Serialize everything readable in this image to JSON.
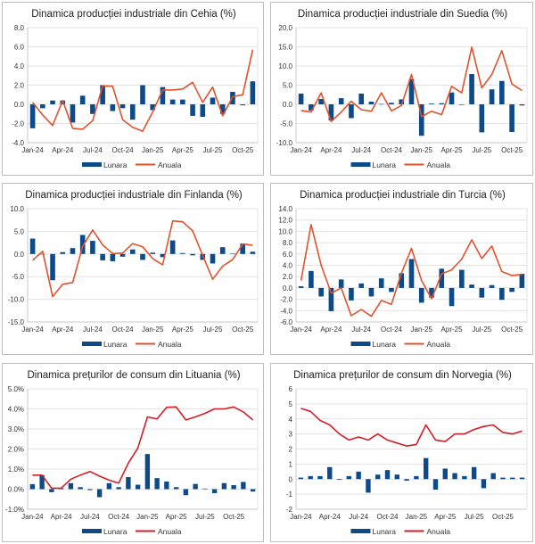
{
  "colors": {
    "bar": "#0d4a8a",
    "line_orange": "#e0522e",
    "line_red": "#d21f27",
    "grid": "#e3e3e3"
  },
  "chart_data": [
    {
      "id": "cehia",
      "type": "bar+line",
      "title": "Dinamica producției industriale din Cehia (%)",
      "xlabel": "",
      "ylabel": "",
      "ylim": [
        -4,
        8
      ],
      "yticks": [
        -4,
        -2,
        0,
        2,
        4,
        6,
        8
      ],
      "ytick_format": "fixed1",
      "grid": true,
      "legend": "bottom",
      "x": [
        "Jan-24",
        "Feb-24",
        "Mar-24",
        "Apr-24",
        "May-24",
        "Jun-24",
        "Jul-24",
        "Aug-24",
        "Sep-24",
        "Oct-24",
        "Nov-24",
        "Dec-24",
        "Jan-25",
        "Feb-25",
        "Mar-25",
        "Apr-25",
        "May-25",
        "Jun-25",
        "Jul-25",
        "Aug-25",
        "Sep-25",
        "Oct-25",
        "Nov-25"
      ],
      "xtick_labels": [
        "Jan-24",
        "Apr-24",
        "Jul-24",
        "Oct-24",
        "Jan-25",
        "Apr-25",
        "Jul-25",
        "Oct-25"
      ],
      "xtick_indices": [
        0,
        3,
        6,
        9,
        12,
        15,
        18,
        21
      ],
      "line_color_key": "line_orange",
      "series": [
        {
          "name": "Lunara",
          "kind": "bar",
          "values": [
            -2.5,
            -0.4,
            0.4,
            0.4,
            -1.9,
            0.9,
            -1.0,
            2.0,
            -0.7,
            -0.4,
            -1.6,
            2.0,
            -0.6,
            1.8,
            0.5,
            0.5,
            -1.2,
            -1.3,
            0.7,
            -1.0,
            1.3,
            -0.1,
            2.4
          ]
        },
        {
          "name": "Anuala",
          "kind": "line",
          "values": [
            0.2,
            -1.1,
            -2.2,
            0.4,
            -2.5,
            -2.6,
            -1.7,
            1.9,
            1.9,
            -1.6,
            -2.4,
            -2.8,
            -0.8,
            1.5,
            1.5,
            1.6,
            2.3,
            0.2,
            1.8,
            -1.2,
            0.8,
            1.0,
            5.7
          ]
        }
      ]
    },
    {
      "id": "suedia",
      "type": "bar+line",
      "title": "Dinamica producției industriale din Suedia (%)",
      "xlabel": "",
      "ylabel": "",
      "ylim": [
        -10,
        20
      ],
      "yticks": [
        -10,
        -5,
        0,
        5,
        10,
        15,
        20
      ],
      "ytick_format": "fixed1",
      "grid": true,
      "legend": "bottom",
      "x": [
        "Jan-24",
        "Feb-24",
        "Mar-24",
        "Apr-24",
        "May-24",
        "Jun-24",
        "Jul-24",
        "Aug-24",
        "Sep-24",
        "Oct-24",
        "Nov-24",
        "Dec-24",
        "Jan-25",
        "Feb-25",
        "Mar-25",
        "Apr-25",
        "May-25",
        "Jun-25",
        "Jul-25",
        "Aug-25",
        "Sep-25",
        "Oct-25",
        "Nov-25"
      ],
      "xtick_labels": [
        "Jan-24",
        "Apr-24",
        "Jul-24",
        "Oct-24",
        "Jan-25",
        "Apr-25",
        "Jul-25",
        "Oct-25"
      ],
      "xtick_indices": [
        0,
        3,
        6,
        9,
        12,
        15,
        18,
        21
      ],
      "line_color_key": "line_orange",
      "series": [
        {
          "name": "Lunara",
          "kind": "bar",
          "values": [
            2.8,
            -1.6,
            1.4,
            -4.2,
            1.6,
            -3.6,
            2.8,
            0.7,
            0.1,
            0.4,
            1.3,
            6.6,
            -8.2,
            0.2,
            0.3,
            3.1,
            -0.1,
            7.9,
            -7.3,
            3.9,
            6.1,
            -7.2,
            -0.3
          ]
        },
        {
          "name": "Anuala",
          "kind": "line",
          "values": [
            -1.6,
            -2.0,
            3.0,
            -4.5,
            -2.0,
            0.8,
            -1.4,
            -1.8,
            3.0,
            -1.7,
            -0.3,
            7.8,
            -3.2,
            -1.8,
            -2.7,
            4.7,
            3.0,
            14.9,
            4.3,
            7.8,
            14.0,
            5.3,
            3.6
          ]
        }
      ]
    },
    {
      "id": "finlanda",
      "type": "bar+line",
      "title": "Dinamica producției industriale din Finlanda (%)",
      "xlabel": "",
      "ylabel": "",
      "ylim": [
        -15,
        10
      ],
      "yticks": [
        -15,
        -10,
        -5,
        0,
        5,
        10
      ],
      "ytick_format": "fixed1",
      "grid": true,
      "legend": "bottom",
      "x": [
        "Jan-24",
        "Feb-24",
        "Mar-24",
        "Apr-24",
        "May-24",
        "Jun-24",
        "Jul-24",
        "Aug-24",
        "Sep-24",
        "Oct-24",
        "Nov-24",
        "Dec-24",
        "Jan-25",
        "Feb-25",
        "Mar-25",
        "Apr-25",
        "May-25",
        "Jun-25",
        "Jul-25",
        "Aug-25",
        "Sep-25",
        "Oct-25",
        "Nov-25"
      ],
      "xtick_labels": [
        "Jan-24",
        "Apr-24",
        "Jul-24",
        "Oct-24",
        "Jan-25",
        "Apr-25",
        "Jul-25",
        "Oct-25"
      ],
      "xtick_indices": [
        0,
        3,
        6,
        9,
        12,
        15,
        18,
        21
      ],
      "line_color_key": "line_orange",
      "series": [
        {
          "name": "Lunara",
          "kind": "bar",
          "values": [
            3.4,
            0.0,
            -5.8,
            0.4,
            1.3,
            4.2,
            2.9,
            -1.4,
            -1.6,
            -0.6,
            1.0,
            -1.3,
            0.3,
            -0.7,
            3.0,
            0.2,
            -0.3,
            -1.3,
            -2.1,
            1.5,
            0.1,
            2.3,
            0.5
          ]
        },
        {
          "name": "Anuala",
          "kind": "line",
          "values": [
            -1.4,
            0.6,
            -9.4,
            -6.7,
            -6.3,
            1.7,
            5.3,
            2.0,
            0.1,
            0.2,
            2.3,
            1.6,
            -1.0,
            -2.4,
            7.3,
            7.1,
            5.1,
            -0.3,
            -5.6,
            -2.7,
            -1.2,
            2.2,
            1.9
          ]
        }
      ]
    },
    {
      "id": "turcia",
      "type": "bar+line",
      "title": "Dinamica producției industriale din Turcia (%)",
      "xlabel": "",
      "ylabel": "",
      "ylim": [
        -6,
        14
      ],
      "yticks": [
        -6,
        -4,
        -2,
        0,
        2,
        4,
        6,
        8,
        10,
        12,
        14
      ],
      "ytick_format": "fixed1",
      "grid": true,
      "legend": "bottom",
      "x": [
        "Jan-24",
        "Feb-24",
        "Mar-24",
        "Apr-24",
        "May-24",
        "Jun-24",
        "Jul-24",
        "Aug-24",
        "Sep-24",
        "Oct-24",
        "Nov-24",
        "Dec-24",
        "Jan-25",
        "Feb-25",
        "Mar-25",
        "Apr-25",
        "May-25",
        "Jun-25",
        "Jul-25",
        "Aug-25",
        "Sep-25",
        "Oct-25",
        "Nov-25"
      ],
      "xtick_labels": [
        "Jan-24",
        "Apr-24",
        "Jul-24",
        "Oct-24",
        "Jan-25",
        "Apr-25",
        "Jul-25",
        "Oct-25"
      ],
      "xtick_indices": [
        0,
        3,
        6,
        9,
        12,
        15,
        18,
        21
      ],
      "line_color_key": "line_orange",
      "series": [
        {
          "name": "Lunara",
          "kind": "bar",
          "values": [
            0.3,
            3.0,
            -1.5,
            -4.1,
            1.5,
            -2.2,
            0.8,
            -1.5,
            1.7,
            -0.7,
            2.6,
            5.1,
            -2.6,
            -1.7,
            3.4,
            -3.2,
            3.2,
            0.6,
            -1.7,
            0.5,
            -2.1,
            -0.7,
            2.5
          ]
        },
        {
          "name": "Anuala",
          "kind": "line",
          "values": [
            1.3,
            11.2,
            4.0,
            -0.9,
            0.0,
            -4.9,
            -3.8,
            -5.0,
            -2.2,
            -2.9,
            2.6,
            7.0,
            1.3,
            -1.9,
            2.5,
            3.2,
            5.1,
            8.5,
            5.2,
            7.4,
            2.9,
            2.2,
            2.4
          ]
        }
      ]
    },
    {
      "id": "lituania",
      "type": "bar+line",
      "title": "Dinamica prețurilor de consum din Lituania (%)",
      "xlabel": "",
      "ylabel": "",
      "ylim": [
        -1,
        5
      ],
      "yticks": [
        -1,
        0,
        1,
        2,
        3,
        4,
        5
      ],
      "ytick_format": "percent1",
      "grid": true,
      "legend": "bottom",
      "x": [
        "Jan-24",
        "Feb-24",
        "Mar-24",
        "Apr-24",
        "May-24",
        "Jun-24",
        "Jul-24",
        "Aug-24",
        "Sep-24",
        "Oct-24",
        "Nov-24",
        "Dec-24",
        "Jan-25",
        "Feb-25",
        "Mar-25",
        "Apr-25",
        "May-25",
        "Jun-25",
        "Jul-25",
        "Aug-25",
        "Sep-25",
        "Oct-25",
        "Nov-25",
        "Dec-25"
      ],
      "xtick_labels": [
        "Jan-24",
        "Apr-24",
        "Jul-24",
        "Oct-24",
        "Jan-25",
        "Apr-25",
        "Jul-25",
        "Oct-25"
      ],
      "xtick_indices": [
        0,
        3,
        6,
        9,
        12,
        15,
        18,
        21
      ],
      "line_color_key": "line_red",
      "series": [
        {
          "name": "Lunara",
          "kind": "bar",
          "values": [
            0.25,
            0.7,
            -0.15,
            0.05,
            0.3,
            0.1,
            -0.05,
            -0.4,
            0.3,
            0.1,
            0.6,
            0.22,
            1.75,
            0.55,
            0.38,
            0.1,
            -0.3,
            0.26,
            0.03,
            -0.2,
            0.3,
            0.2,
            0.36,
            -0.12
          ]
        },
        {
          "name": "Anuala",
          "kind": "line",
          "values": [
            0.7,
            0.7,
            0.05,
            0.05,
            0.5,
            0.7,
            0.88,
            0.65,
            0.45,
            0.3,
            1.3,
            2.05,
            3.6,
            3.5,
            4.08,
            4.1,
            3.45,
            3.6,
            3.78,
            4.0,
            4.0,
            4.1,
            3.85,
            3.45
          ]
        }
      ]
    },
    {
      "id": "norvegia",
      "type": "bar+line",
      "title": "Dinamica prețurilor de consum din Norvegia (%)",
      "xlabel": "",
      "ylabel": "",
      "ylim": [
        -2,
        6
      ],
      "yticks": [
        -2,
        -1,
        0,
        1,
        2,
        3,
        4,
        5,
        6
      ],
      "ytick_format": "int",
      "grid": true,
      "legend": "bottom",
      "x": [
        "Jan-24",
        "Feb-24",
        "Mar-24",
        "Apr-24",
        "May-24",
        "Jun-24",
        "Jul-24",
        "Aug-24",
        "Sep-24",
        "Oct-24",
        "Nov-24",
        "Dec-24",
        "Jan-25",
        "Feb-25",
        "Mar-25",
        "Apr-25",
        "May-25",
        "Jun-25",
        "Jul-25",
        "Aug-25",
        "Sep-25",
        "Oct-25",
        "Nov-25",
        "Dec-25"
      ],
      "xtick_labels": [
        "Jan-24",
        "Apr-24",
        "Jul-24",
        "Oct-24",
        "Jan-25",
        "Apr-25",
        "Jul-25",
        "Oct-25"
      ],
      "xtick_indices": [
        0,
        3,
        6,
        9,
        12,
        15,
        18,
        21
      ],
      "line_color_key": "line_red",
      "series": [
        {
          "name": "Lunara",
          "kind": "bar",
          "values": [
            0.1,
            0.2,
            0.2,
            0.8,
            -0.05,
            0.2,
            0.5,
            -0.9,
            0.3,
            0.6,
            0.3,
            -0.1,
            0.2,
            1.4,
            -0.7,
            0.7,
            0.4,
            0.2,
            0.8,
            -0.6,
            0.4,
            0.1,
            0.1,
            0.1
          ]
        },
        {
          "name": "Anuala",
          "kind": "line",
          "values": [
            4.7,
            4.5,
            3.9,
            3.6,
            3.0,
            2.6,
            2.8,
            2.6,
            3.0,
            2.6,
            2.4,
            2.2,
            2.3,
            3.6,
            2.6,
            2.5,
            3.0,
            3.0,
            3.3,
            3.5,
            3.6,
            3.1,
            3.0,
            3.2
          ]
        }
      ]
    }
  ],
  "legend": {
    "bar_label": "Lunara",
    "line_label": "Anuala"
  }
}
